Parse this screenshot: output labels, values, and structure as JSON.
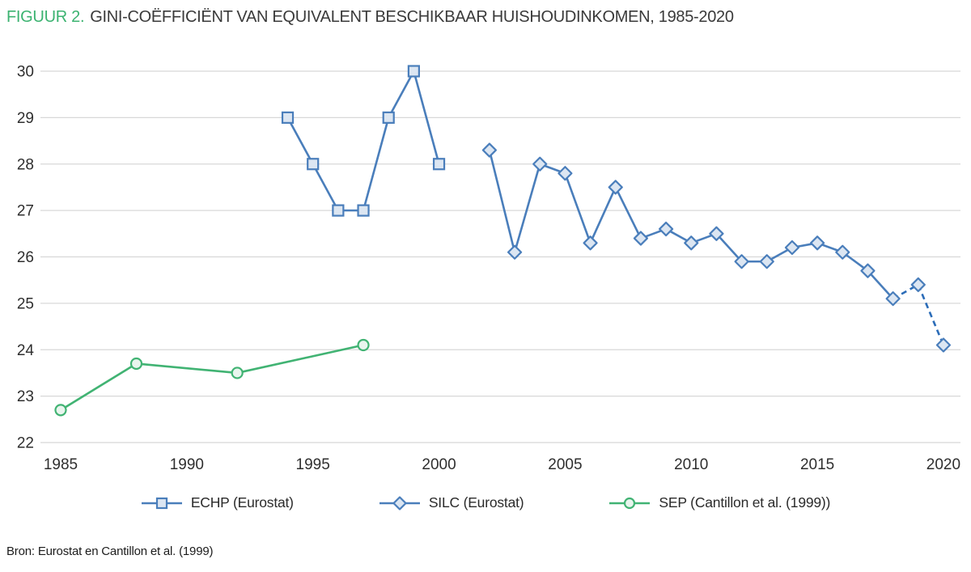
{
  "title": {
    "prefix": "FIGUUR 2.",
    "text": "GINI-COËFFICIËNT VAN EQUIVALENT BESCHIKBAAR HUISHOUDINKOMEN, 1985-2020"
  },
  "source_note": "Bron: Eurostat en Cantillon et al. (1999)",
  "colors": {
    "accent_green": "#3cb371",
    "series_blue": "#4a7ebb",
    "series_blue_dashed": "#2b6cb8",
    "marker_fill_blue": "#dce6f2",
    "series_green": "#41b373",
    "marker_fill_green": "#e9f5ee",
    "gridline": "#d8d8d8",
    "text": "#2f2f2f"
  },
  "chart_data": {
    "type": "line",
    "title": "FIGUUR 2. GINI-COËFFICIËNT VAN EQUIVALENT BESCHIKBAAR HUISHOUDINKOMEN, 1985-2020",
    "xlabel": "",
    "ylabel": "",
    "x_ticks": [
      1985,
      1990,
      1995,
      2000,
      2005,
      2010,
      2015,
      2020
    ],
    "y_ticks": [
      22,
      23,
      24,
      25,
      26,
      27,
      28,
      29,
      30
    ],
    "xlim": [
      1984,
      2021
    ],
    "ylim": [
      22,
      30
    ],
    "grid": "horizontal-only",
    "legend_position": "bottom-center",
    "series": [
      {
        "name": "ECHP (Eurostat)",
        "marker": "square",
        "line_style": "solid",
        "color": "#4a7ebb",
        "marker_fill": "#dce6f2",
        "x": [
          1994,
          1995,
          1996,
          1997,
          1998,
          1999,
          2000
        ],
        "values": [
          29,
          28,
          27,
          27,
          29,
          30,
          28
        ]
      },
      {
        "name": "SILC (Eurostat)",
        "marker": "diamond",
        "line_style": "solid-then-dashed",
        "dashed_from_x": 2018,
        "color": "#4a7ebb",
        "dash_color": "#2b6cb8",
        "marker_fill": "#dce6f2",
        "x": [
          2002,
          2003,
          2004,
          2005,
          2006,
          2007,
          2008,
          2009,
          2010,
          2011,
          2012,
          2013,
          2014,
          2015,
          2016,
          2017,
          2018,
          2019,
          2020
        ],
        "values": [
          28.3,
          26.1,
          28.0,
          27.8,
          26.3,
          27.5,
          26.4,
          26.6,
          26.3,
          26.5,
          25.9,
          25.9,
          26.2,
          26.3,
          26.1,
          25.7,
          25.1,
          25.4,
          24.1
        ]
      },
      {
        "name": "SEP (Cantillon et al. (1999))",
        "marker": "circle",
        "line_style": "solid",
        "color": "#41b373",
        "marker_fill": "#e9f5ee",
        "x": [
          1985,
          1988,
          1992,
          1997
        ],
        "values": [
          22.7,
          23.7,
          23.5,
          24.1
        ]
      }
    ]
  }
}
